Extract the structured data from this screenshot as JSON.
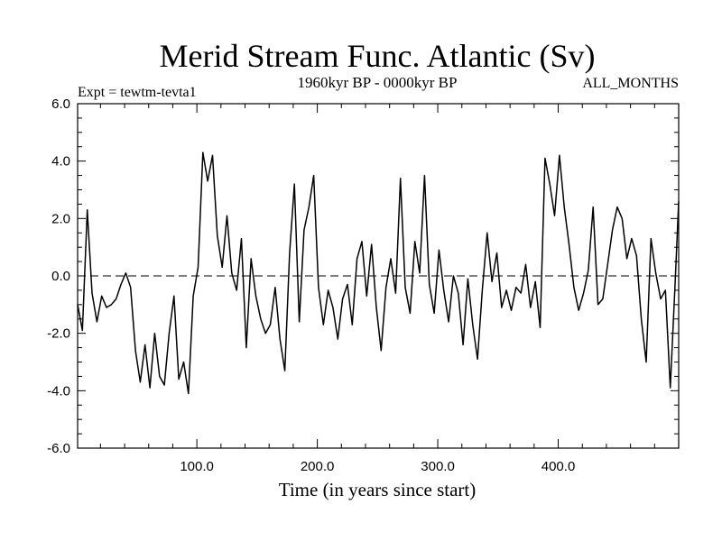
{
  "chart_data": {
    "type": "line",
    "title": "Merid Stream Func. Atlantic (Sv)",
    "subtitle": "1960kyr BP - 0000kyr BP",
    "left_label": "Expt = tewtm-tevta1",
    "right_label": "ALL_MONTHS",
    "xlabel": "Time (in years since start)",
    "ylabel": "",
    "xlim": [
      1,
      500
    ],
    "ylim": [
      -6.0,
      6.0
    ],
    "xticks": [
      100,
      200,
      300,
      400
    ],
    "xtick_labels": [
      "100.0",
      "200.0",
      "300.0",
      "400.0"
    ],
    "yticks": [
      -6,
      -4,
      -2,
      0,
      2,
      4,
      6
    ],
    "ytick_labels": [
      "-6.0",
      "-4.0",
      "-2.0",
      "0.0",
      "2.0",
      "4.0",
      "6.0"
    ],
    "reference_line": 0,
    "grid": false,
    "series": [
      {
        "name": "Merid Stream Func. Atlantic",
        "x": [
          1,
          5,
          9,
          13,
          17,
          21,
          25,
          29,
          33,
          37,
          41,
          45,
          49,
          53,
          57,
          61,
          65,
          69,
          73,
          77,
          81,
          85,
          89,
          93,
          97,
          101,
          105,
          109,
          113,
          117,
          121,
          125,
          129,
          133,
          137,
          141,
          145,
          149,
          153,
          157,
          161,
          165,
          169,
          173,
          177,
          181,
          185,
          189,
          193,
          197,
          201,
          205,
          209,
          213,
          217,
          221,
          225,
          229,
          233,
          237,
          241,
          245,
          249,
          253,
          257,
          261,
          265,
          269,
          273,
          277,
          281,
          285,
          289,
          293,
          297,
          301,
          305,
          309,
          313,
          317,
          321,
          325,
          329,
          333,
          337,
          341,
          345,
          349,
          353,
          357,
          361,
          365,
          369,
          373,
          377,
          381,
          385,
          389,
          393,
          397,
          401,
          405,
          409,
          413,
          417,
          421,
          425,
          429,
          433,
          437,
          441,
          445,
          449,
          453,
          457,
          461,
          465,
          469,
          473,
          477,
          481,
          485,
          489,
          493,
          497,
          500
        ],
        "values": [
          -1.0,
          -1.9,
          2.3,
          -0.6,
          -1.6,
          -0.7,
          -1.1,
          -1.0,
          -0.8,
          -0.3,
          0.1,
          -0.4,
          -2.6,
          -3.7,
          -2.4,
          -3.9,
          -2.0,
          -3.5,
          -3.8,
          -2.0,
          -0.7,
          -3.6,
          -3.0,
          -4.1,
          -0.7,
          0.3,
          4.3,
          3.3,
          4.2,
          1.4,
          0.3,
          2.1,
          0.1,
          -0.5,
          1.3,
          -2.5,
          0.6,
          -0.7,
          -1.5,
          -2.0,
          -1.7,
          -0.4,
          -2.2,
          -3.3,
          0.8,
          3.2,
          -1.6,
          1.6,
          2.4,
          3.5,
          -0.4,
          -1.7,
          -0.5,
          -1.1,
          -2.2,
          -0.8,
          -0.3,
          -1.7,
          0.6,
          1.2,
          -0.7,
          1.1,
          -1.1,
          -2.6,
          -0.4,
          0.6,
          -0.6,
          3.4,
          -0.4,
          -1.3,
          1.2,
          0.1,
          3.5,
          -0.3,
          -1.3,
          0.9,
          -0.5,
          -1.6,
          0.0,
          -0.6,
          -2.4,
          -0.1,
          -1.7,
          -2.9,
          -0.5,
          1.5,
          -0.2,
          0.8,
          -1.1,
          -0.5,
          -1.2,
          -0.4,
          -0.6,
          0.4,
          -1.1,
          -0.2,
          -1.8,
          4.1,
          3.2,
          2.1,
          4.2,
          2.4,
          1.1,
          -0.4,
          -1.2,
          -0.6,
          0.2,
          2.4,
          -1.0,
          -0.8,
          0.4,
          1.6,
          2.4,
          2.0,
          0.6,
          1.3,
          0.7,
          -1.5,
          -3.0,
          1.3,
          0.1,
          -0.8,
          -0.5,
          -3.9,
          -0.3,
          2.6
        ]
      }
    ]
  }
}
